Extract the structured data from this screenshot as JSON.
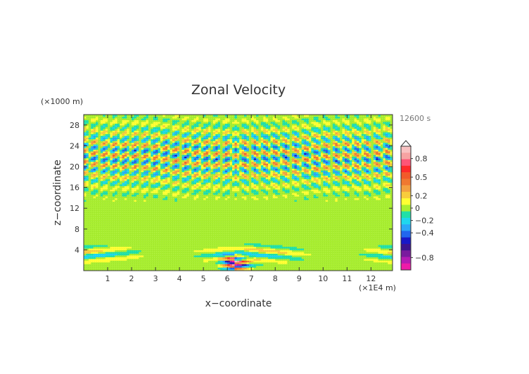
{
  "chart_data": {
    "type": "heatmap",
    "title": "Zonal Velocity",
    "xlabel": "x−coordinate",
    "ylabel": "z−coordinate",
    "x_unit": "(×1E4 m)",
    "y_unit": "(×1000 m)",
    "time_label": "12600 s",
    "xlim": [
      0,
      12.9
    ],
    "ylim": [
      0,
      30
    ],
    "x_ticks": [
      "1",
      "2",
      "3",
      "4",
      "5",
      "6",
      "7",
      "8",
      "9",
      "10",
      "11",
      "12"
    ],
    "y_ticks": [
      "4",
      "8",
      "12",
      "16",
      "20",
      "24",
      "28"
    ],
    "grid": false,
    "colorbar": {
      "placement": "right",
      "labels": [
        "0.8",
        "0.5",
        "0.2",
        "0",
        "−0.2",
        "−0.4",
        "−0.8"
      ],
      "colors": [
        "#f9c2c2",
        "#f7a2a2",
        "#ff5577",
        "#ff2a2a",
        "#f25a2a",
        "#f07830",
        "#f4a040",
        "#f8cc3c",
        "#ffff33",
        "#a8ee30",
        "#22e0a8",
        "#1fd7ee",
        "#2aa8f8",
        "#2166ee",
        "#1818c8",
        "#3c1490",
        "#7a1a9e",
        "#b41ab4",
        "#ee1aa8"
      ],
      "range": [
        -1.0,
        1.0
      ],
      "label_values": [
        0.8,
        0.5,
        0.2,
        0.0,
        -0.2,
        -0.4,
        -0.8
      ]
    }
  }
}
